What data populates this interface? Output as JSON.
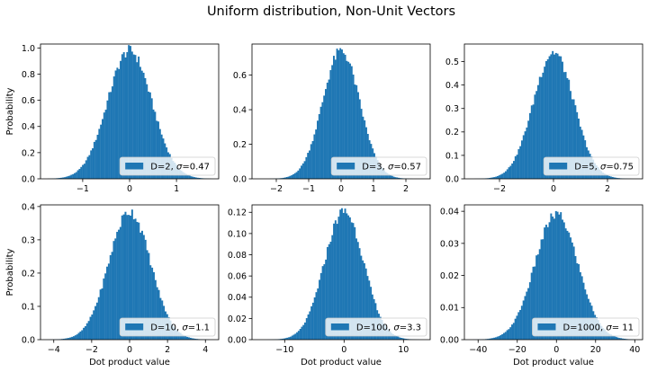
{
  "title": "Uniform distribution, Non-Unit Vectors",
  "chart_data": [
    {
      "type": "bar",
      "panel": "top-left",
      "D": 2,
      "sigma": 0.47,
      "legend": {
        "prefix": "D=2, ",
        "sigma_symbol": "σ",
        "value": "=0.47"
      },
      "legend_placement": "lower-right",
      "xlim": [
        -1.9,
        1.9
      ],
      "ylim": [
        0,
        1.03
      ],
      "xticks": [
        -1,
        0,
        1
      ],
      "xtick_labels": [
        "−1",
        "0",
        "1"
      ],
      "yticks": [
        0,
        0.2,
        0.4,
        0.6,
        0.8,
        1.0
      ],
      "ytick_labels": [
        "0.0",
        "0.2",
        "0.4",
        "0.6",
        "0.8",
        "1.0"
      ],
      "ylabel": "Probability",
      "xlabel": "",
      "peak": 0.98,
      "data_range": [
        -1.75,
        1.75
      ],
      "color": "#1f77b4",
      "bins": 100
    },
    {
      "type": "bar",
      "panel": "top-middle",
      "D": 3,
      "sigma": 0.57,
      "legend": {
        "prefix": "D=3, ",
        "sigma_symbol": "σ",
        "value": "=0.57"
      },
      "legend_placement": "lower-right",
      "xlim": [
        -2.75,
        2.75
      ],
      "ylim": [
        0,
        0.78
      ],
      "xticks": [
        -2,
        -1,
        0,
        1,
        2
      ],
      "xtick_labels": [
        "−2",
        "−1",
        "0",
        "1",
        "2"
      ],
      "yticks": [
        0,
        0.2,
        0.4,
        0.6
      ],
      "ytick_labels": [
        "0.0",
        "0.2",
        "0.4",
        "0.6"
      ],
      "ylabel": "",
      "xlabel": "",
      "peak": 0.74,
      "data_range": [
        -2.5,
        2.5
      ],
      "color": "#1f77b4",
      "bins": 100
    },
    {
      "type": "bar",
      "panel": "top-right",
      "D": 5,
      "sigma": 0.75,
      "legend": {
        "prefix": "D=5, ",
        "sigma_symbol": "σ",
        "value": "=0.75"
      },
      "legend_placement": "lower-right",
      "xlim": [
        -3.3,
        3.3
      ],
      "ylim": [
        0,
        0.575
      ],
      "xticks": [
        -2,
        0,
        2
      ],
      "xtick_labels": [
        "−2",
        "0",
        "2"
      ],
      "yticks": [
        0,
        0.1,
        0.2,
        0.3,
        0.4,
        0.5
      ],
      "ytick_labels": [
        "0.0",
        "0.1",
        "0.2",
        "0.3",
        "0.4",
        "0.5"
      ],
      "ylabel": "",
      "xlabel": "",
      "peak": 0.54,
      "data_range": [
        -3.0,
        3.0
      ],
      "color": "#1f77b4",
      "bins": 100
    },
    {
      "type": "bar",
      "panel": "bottom-left",
      "D": 10,
      "sigma": 1.1,
      "legend": {
        "prefix": "D=10, ",
        "sigma_symbol": "σ",
        "value": "=1.1"
      },
      "legend_placement": "lower-right",
      "xlim": [
        -4.7,
        4.7
      ],
      "ylim": [
        0,
        0.405
      ],
      "xticks": [
        -4,
        -2,
        0,
        2,
        4
      ],
      "xtick_labels": [
        "−4",
        "−2",
        "0",
        "2",
        "4"
      ],
      "yticks": [
        0,
        0.1,
        0.2,
        0.3,
        0.4
      ],
      "ytick_labels": [
        "0.0",
        "0.1",
        "0.2",
        "0.3",
        "0.4"
      ],
      "ylabel": "Probability",
      "xlabel": "Dot product value",
      "peak": 0.385,
      "data_range": [
        -4.4,
        4.4
      ],
      "color": "#1f77b4",
      "bins": 100
    },
    {
      "type": "bar",
      "panel": "bottom-middle",
      "D": 100,
      "sigma": 3.3,
      "legend": {
        "prefix": "D=100, ",
        "sigma_symbol": "σ",
        "value": "=3.3"
      },
      "legend_placement": "lower-right",
      "xlim": [
        -15.5,
        14.5
      ],
      "ylim": [
        0,
        0.127
      ],
      "xticks": [
        -10,
        0,
        10
      ],
      "xtick_labels": [
        "−10",
        "0",
        "10"
      ],
      "yticks": [
        0,
        0.02,
        0.04,
        0.06,
        0.08,
        0.1,
        0.12
      ],
      "ytick_labels": [
        "0.00",
        "0.02",
        "0.04",
        "0.06",
        "0.08",
        "0.10",
        "0.12"
      ],
      "ylabel": "",
      "xlabel": "Dot product value",
      "peak": 0.121,
      "data_range": [
        -14,
        13
      ],
      "color": "#1f77b4",
      "bins": 100
    },
    {
      "type": "bar",
      "panel": "bottom-right",
      "D": 1000,
      "sigma": 11,
      "legend": {
        "prefix": "D=1000, ",
        "sigma_symbol": "σ",
        "value": "= 11"
      },
      "legend_placement": "lower-right",
      "xlim": [
        -47,
        44
      ],
      "ylim": [
        0,
        0.042
      ],
      "xticks": [
        -40,
        -20,
        0,
        20,
        40
      ],
      "xtick_labels": [
        "−40",
        "−20",
        "0",
        "20",
        "40"
      ],
      "yticks": [
        0,
        0.01,
        0.02,
        0.03,
        0.04
      ],
      "ytick_labels": [
        "0.00",
        "0.01",
        "0.02",
        "0.03",
        "0.04"
      ],
      "ylabel": "",
      "xlabel": "Dot product value",
      "peak": 0.039,
      "data_range": [
        -43,
        40
      ],
      "color": "#1f77b4",
      "bins": 100
    }
  ]
}
